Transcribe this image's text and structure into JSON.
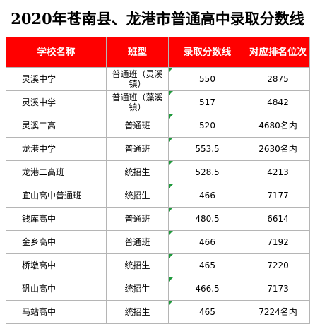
{
  "title": "2020年苍南县、龙港市普通高中录取分数线",
  "table": {
    "headers": [
      "学校名称",
      "班型",
      "录取分数线",
      "对应排名位次"
    ],
    "rows": [
      {
        "school": "灵溪中学",
        "type": "普通班（灵溪镇）",
        "score": "550",
        "rank": "2875"
      },
      {
        "school": "灵溪中学",
        "type": "普通班（藻溪镇）",
        "score": "517",
        "rank": "4842"
      },
      {
        "school": "灵溪二高",
        "type": "普通班",
        "score": "520",
        "rank": "4680名内"
      },
      {
        "school": "龙港中学",
        "type": "普通班",
        "score": "553.5",
        "rank": "2630名内"
      },
      {
        "school": "龙港二高班",
        "type": "统招生",
        "score": "528.5",
        "rank": "4213"
      },
      {
        "school": "宜山高中普通班",
        "type": "统招生",
        "score": "466",
        "rank": "7177"
      },
      {
        "school": "钱库高中",
        "type": "普通班",
        "score": "480.5",
        "rank": "6614"
      },
      {
        "school": "金乡高中",
        "type": "普通班",
        "score": "466",
        "rank": "7192"
      },
      {
        "school": "桥墩高中",
        "type": "统招生",
        "score": "465",
        "rank": "7220"
      },
      {
        "school": "矾山高中",
        "type": "统招生",
        "score": "466.5",
        "rank": "7173"
      },
      {
        "school": "马站高中",
        "type": "统招生",
        "score": "465",
        "rank": "7224名内"
      }
    ]
  }
}
